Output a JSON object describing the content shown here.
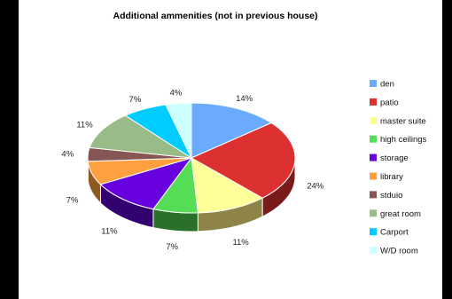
{
  "chart_data": {
    "type": "pie",
    "style": "3d",
    "title": "Additional ammenities (not in previous house)",
    "legend_position": "right",
    "slices": [
      {
        "name": "den",
        "value": 14,
        "label": "14%",
        "color": "#6aabff",
        "side": "#3f6fb0"
      },
      {
        "name": "patio",
        "value": 24,
        "label": "24%",
        "color": "#dd3030",
        "side": "#7a1a1a"
      },
      {
        "name": "master suite",
        "value": 11,
        "label": "11%",
        "color": "#ffff99",
        "side": "#8f8447"
      },
      {
        "name": "high ceilings",
        "value": 7,
        "label": "7%",
        "color": "#55dd55",
        "side": "#2a6f2a"
      },
      {
        "name": "storage",
        "value": 11,
        "label": "11%",
        "color": "#6600dd",
        "side": "#33006f"
      },
      {
        "name": "library",
        "value": 7,
        "label": "7%",
        "color": "#ffa040",
        "side": "#8f5a20"
      },
      {
        "name": "stduio",
        "value": 4,
        "label": "4%",
        "color": "#885555",
        "side": "#4a2c2c"
      },
      {
        "name": "great room",
        "value": 11,
        "label": "11%",
        "color": "#99bb88",
        "side": "#5a6e50"
      },
      {
        "name": "Carport",
        "value": 7,
        "label": "7%",
        "color": "#00ccff",
        "side": "#007799"
      },
      {
        "name": "W/D room",
        "value": 4,
        "label": "4%",
        "color": "#ccffff",
        "side": "#7aa7a7"
      }
    ]
  }
}
